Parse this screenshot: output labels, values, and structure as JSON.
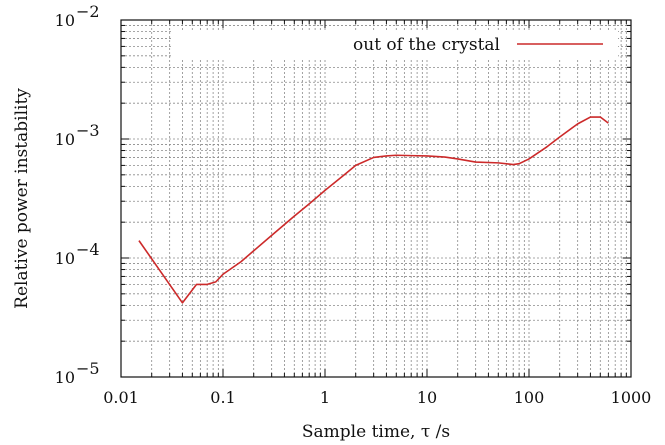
{
  "chart_data": {
    "type": "line",
    "title": "",
    "xlabel": "Sample time, τ /s",
    "ylabel": "Relative power instability",
    "xscale": "log",
    "yscale": "log",
    "xlim": [
      0.01,
      1000
    ],
    "ylim": [
      1e-05,
      0.01
    ],
    "grid": true,
    "legend_position": "top-right",
    "x_ticks": [
      {
        "value": 0.01,
        "label": "0.01"
      },
      {
        "value": 0.1,
        "label": "0.1"
      },
      {
        "value": 1,
        "label": "1"
      },
      {
        "value": 10,
        "label": "10"
      },
      {
        "value": 100,
        "label": "100"
      },
      {
        "value": 1000,
        "label": "1000"
      }
    ],
    "y_ticks": [
      {
        "value": 1e-05,
        "base": "10",
        "exp": "−5"
      },
      {
        "value": 0.0001,
        "base": "10",
        "exp": "−4"
      },
      {
        "value": 0.001,
        "base": "10",
        "exp": "−3"
      },
      {
        "value": 0.01,
        "base": "10",
        "exp": "−2"
      }
    ],
    "series": [
      {
        "name": "out of the crystal",
        "color": "#cc2a2a",
        "x": [
          0.015,
          0.04,
          0.055,
          0.07,
          0.085,
          0.1,
          0.15,
          0.2,
          0.3,
          0.5,
          0.7,
          1,
          1.5,
          2,
          3,
          4,
          5,
          7,
          10,
          15,
          20,
          30,
          50,
          70,
          80,
          100,
          150,
          200,
          300,
          400,
          500,
          600
        ],
        "y": [
          0.00014,
          4.2e-05,
          6e-05,
          6e-05,
          6.3e-05,
          7.3e-05,
          9.3e-05,
          0.000115,
          0.000155,
          0.000225,
          0.000285,
          0.00037,
          0.00049,
          0.0006,
          0.0007,
          0.00072,
          0.00073,
          0.000725,
          0.00072,
          0.000705,
          0.00068,
          0.00064,
          0.00063,
          0.00061,
          0.00062,
          0.00068,
          0.00086,
          0.00104,
          0.00134,
          0.00153,
          0.00153,
          0.00136
        ]
      }
    ]
  }
}
